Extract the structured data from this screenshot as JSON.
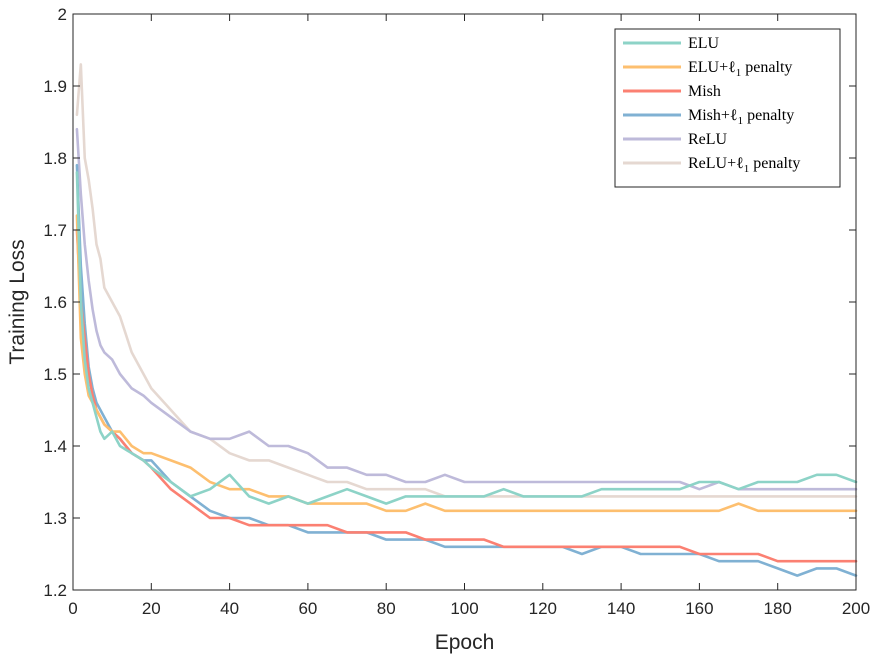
{
  "chart_data": {
    "type": "line",
    "title": "",
    "xlabel": "Epoch",
    "ylabel": "Training Loss",
    "xlim": [
      0,
      200
    ],
    "ylim": [
      1.2,
      2.0
    ],
    "xticks": [
      "0",
      "20",
      "40",
      "60",
      "80",
      "100",
      "120",
      "140",
      "160",
      "180",
      "200"
    ],
    "yticks": [
      "1.2",
      "1.3",
      "1.4",
      "1.5",
      "1.6",
      "1.7",
      "1.8",
      "1.9",
      "2"
    ],
    "grid": false,
    "legend_position": "top-right",
    "series": [
      {
        "name": "ELU",
        "legend_main": "ELU",
        "legend_sub": "",
        "legend_tail": "",
        "color": "#8dd3c7",
        "x": [
          1,
          2,
          3,
          4,
          5,
          6,
          7,
          8,
          10,
          12,
          15,
          18,
          20,
          25,
          30,
          35,
          40,
          45,
          50,
          55,
          60,
          65,
          70,
          75,
          80,
          85,
          90,
          95,
          100,
          105,
          110,
          115,
          120,
          125,
          130,
          135,
          140,
          145,
          150,
          155,
          160,
          165,
          170,
          175,
          180,
          185,
          190,
          195,
          200
        ],
        "values": [
          1.78,
          1.6,
          1.52,
          1.48,
          1.46,
          1.44,
          1.42,
          1.41,
          1.42,
          1.4,
          1.39,
          1.38,
          1.37,
          1.35,
          1.33,
          1.34,
          1.36,
          1.33,
          1.32,
          1.33,
          1.32,
          1.33,
          1.34,
          1.33,
          1.32,
          1.33,
          1.33,
          1.33,
          1.33,
          1.33,
          1.34,
          1.33,
          1.33,
          1.33,
          1.33,
          1.34,
          1.34,
          1.34,
          1.34,
          1.34,
          1.35,
          1.35,
          1.34,
          1.35,
          1.35,
          1.35,
          1.36,
          1.36,
          1.35
        ]
      },
      {
        "name": "ELU+ℓ1 penalty",
        "legend_main": "ELU+ℓ",
        "legend_sub": "1",
        "legend_tail": " penalty",
        "color": "#fdbf6f",
        "x": [
          1,
          2,
          3,
          4,
          5,
          6,
          7,
          8,
          10,
          12,
          15,
          18,
          20,
          25,
          30,
          35,
          40,
          45,
          50,
          55,
          60,
          65,
          70,
          75,
          80,
          85,
          90,
          95,
          100,
          105,
          110,
          115,
          120,
          125,
          130,
          135,
          140,
          145,
          150,
          155,
          160,
          165,
          170,
          175,
          180,
          185,
          190,
          195,
          200
        ],
        "values": [
          1.72,
          1.55,
          1.5,
          1.47,
          1.46,
          1.45,
          1.44,
          1.43,
          1.42,
          1.42,
          1.4,
          1.39,
          1.39,
          1.38,
          1.37,
          1.35,
          1.34,
          1.34,
          1.33,
          1.33,
          1.32,
          1.32,
          1.32,
          1.32,
          1.31,
          1.31,
          1.32,
          1.31,
          1.31,
          1.31,
          1.31,
          1.31,
          1.31,
          1.31,
          1.31,
          1.31,
          1.31,
          1.31,
          1.31,
          1.31,
          1.31,
          1.31,
          1.32,
          1.31,
          1.31,
          1.31,
          1.31,
          1.31,
          1.31
        ]
      },
      {
        "name": "Mish",
        "legend_main": "Mish",
        "legend_sub": "",
        "legend_tail": "",
        "color": "#fb8072",
        "x": [
          1,
          2,
          3,
          4,
          5,
          6,
          7,
          8,
          10,
          12,
          15,
          18,
          20,
          25,
          30,
          35,
          40,
          45,
          50,
          55,
          60,
          65,
          70,
          75,
          80,
          85,
          90,
          95,
          100,
          105,
          110,
          115,
          120,
          125,
          130,
          135,
          140,
          145,
          150,
          155,
          160,
          165,
          170,
          175,
          180,
          185,
          190,
          195,
          200
        ],
        "values": [
          1.7,
          1.6,
          1.55,
          1.5,
          1.47,
          1.45,
          1.44,
          1.43,
          1.42,
          1.41,
          1.39,
          1.38,
          1.37,
          1.34,
          1.32,
          1.3,
          1.3,
          1.29,
          1.29,
          1.29,
          1.29,
          1.29,
          1.28,
          1.28,
          1.28,
          1.28,
          1.27,
          1.27,
          1.27,
          1.27,
          1.26,
          1.26,
          1.26,
          1.26,
          1.26,
          1.26,
          1.26,
          1.26,
          1.26,
          1.26,
          1.25,
          1.25,
          1.25,
          1.25,
          1.24,
          1.24,
          1.24,
          1.24,
          1.24
        ]
      },
      {
        "name": "Mish+ℓ1 penalty",
        "legend_main": "Mish+ℓ",
        "legend_sub": "1",
        "legend_tail": " penalty",
        "color": "#80b1d3",
        "x": [
          1,
          2,
          3,
          4,
          5,
          6,
          7,
          8,
          10,
          12,
          15,
          18,
          20,
          25,
          30,
          35,
          40,
          45,
          50,
          55,
          60,
          65,
          70,
          75,
          80,
          85,
          90,
          95,
          100,
          105,
          110,
          115,
          120,
          125,
          130,
          135,
          140,
          145,
          150,
          155,
          160,
          165,
          170,
          175,
          180,
          185,
          190,
          195,
          200
        ],
        "values": [
          1.79,
          1.65,
          1.57,
          1.51,
          1.48,
          1.46,
          1.45,
          1.44,
          1.42,
          1.41,
          1.39,
          1.38,
          1.38,
          1.35,
          1.33,
          1.31,
          1.3,
          1.3,
          1.29,
          1.29,
          1.28,
          1.28,
          1.28,
          1.28,
          1.27,
          1.27,
          1.27,
          1.26,
          1.26,
          1.26,
          1.26,
          1.26,
          1.26,
          1.26,
          1.25,
          1.26,
          1.26,
          1.25,
          1.25,
          1.25,
          1.25,
          1.24,
          1.24,
          1.24,
          1.23,
          1.22,
          1.23,
          1.23,
          1.22
        ]
      },
      {
        "name": "ReLU",
        "legend_main": "ReLU",
        "legend_sub": "",
        "legend_tail": "",
        "color": "#bebada",
        "x": [
          1,
          2,
          3,
          4,
          5,
          6,
          7,
          8,
          10,
          12,
          15,
          18,
          20,
          25,
          30,
          35,
          40,
          45,
          50,
          55,
          60,
          65,
          70,
          75,
          80,
          85,
          90,
          95,
          100,
          105,
          110,
          115,
          120,
          125,
          130,
          135,
          140,
          145,
          150,
          155,
          160,
          165,
          170,
          175,
          180,
          185,
          190,
          195,
          200
        ],
        "values": [
          1.84,
          1.75,
          1.68,
          1.63,
          1.59,
          1.56,
          1.54,
          1.53,
          1.52,
          1.5,
          1.48,
          1.47,
          1.46,
          1.44,
          1.42,
          1.41,
          1.41,
          1.42,
          1.4,
          1.4,
          1.39,
          1.37,
          1.37,
          1.36,
          1.36,
          1.35,
          1.35,
          1.36,
          1.35,
          1.35,
          1.35,
          1.35,
          1.35,
          1.35,
          1.35,
          1.35,
          1.35,
          1.35,
          1.35,
          1.35,
          1.34,
          1.35,
          1.34,
          1.34,
          1.34,
          1.34,
          1.34,
          1.34,
          1.34
        ]
      },
      {
        "name": "ReLU+ℓ1 penalty",
        "legend_main": "ReLU+ℓ",
        "legend_sub": "1",
        "legend_tail": " penalty",
        "color": "#e5d8d1",
        "x": [
          1,
          2,
          3,
          4,
          5,
          6,
          7,
          8,
          10,
          12,
          15,
          18,
          20,
          25,
          30,
          35,
          40,
          45,
          50,
          55,
          60,
          65,
          70,
          75,
          80,
          85,
          90,
          95,
          100,
          105,
          110,
          115,
          120,
          125,
          130,
          135,
          140,
          145,
          150,
          155,
          160,
          165,
          170,
          175,
          180,
          185,
          190,
          195,
          200
        ],
        "values": [
          1.86,
          1.93,
          1.8,
          1.77,
          1.73,
          1.68,
          1.66,
          1.62,
          1.6,
          1.58,
          1.53,
          1.5,
          1.48,
          1.45,
          1.42,
          1.41,
          1.39,
          1.38,
          1.38,
          1.37,
          1.36,
          1.35,
          1.35,
          1.34,
          1.34,
          1.34,
          1.34,
          1.33,
          1.33,
          1.33,
          1.33,
          1.33,
          1.33,
          1.33,
          1.33,
          1.33,
          1.33,
          1.33,
          1.33,
          1.33,
          1.33,
          1.33,
          1.33,
          1.33,
          1.33,
          1.33,
          1.33,
          1.33,
          1.33
        ]
      }
    ]
  }
}
